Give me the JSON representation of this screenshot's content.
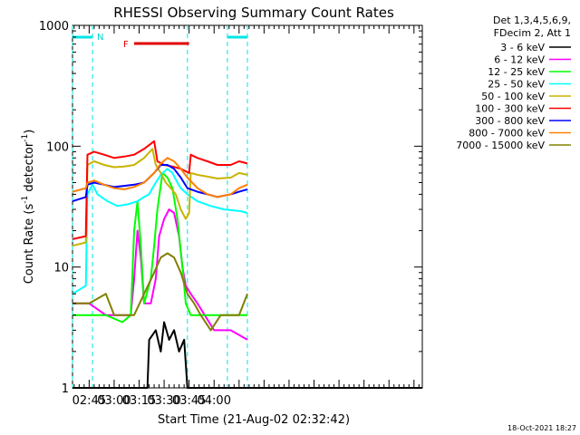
{
  "chart_data": {
    "type": "line",
    "title": "RHESSI Observing Summary Count Rates",
    "xlabel": "Start Time (21-Aug-02 02:32:42)",
    "ylabel_parts": [
      "Count Rate (s",
      "-1",
      " detector",
      "-1",
      ")"
    ],
    "y_scale": "log",
    "ylim": [
      1,
      1000
    ],
    "xlim_minutes": [
      35,
      245
    ],
    "y_ticks": [
      {
        "v": 1,
        "label": "1"
      },
      {
        "v": 10,
        "label": "10"
      },
      {
        "v": 100,
        "label": "100"
      },
      {
        "v": 1000,
        "label": "1000"
      }
    ],
    "x_ticks": [
      {
        "t": 45,
        "label": "02:45"
      },
      {
        "t": 60,
        "label": "03:00"
      },
      {
        "t": 75,
        "label": "03:15"
      },
      {
        "t": 90,
        "label": "03:30"
      },
      {
        "t": 105,
        "label": "03:45"
      },
      {
        "t": 120,
        "label": "04:00"
      }
    ],
    "legend_header": [
      "Det 1,3,4,5,6,9,",
      "FDecim 2, Att 1"
    ],
    "legend_position": "right",
    "series": [
      {
        "name": "3 - 6 keV",
        "color": "#000000",
        "points": [
          [
            35,
            1
          ],
          [
            80,
            1
          ],
          [
            81,
            2.5
          ],
          [
            85,
            3
          ],
          [
            88,
            2
          ],
          [
            90,
            3.5
          ],
          [
            93,
            2.5
          ],
          [
            96,
            3
          ],
          [
            99,
            2
          ],
          [
            102,
            2.5
          ],
          [
            104,
            1
          ],
          [
            245,
            1
          ]
        ]
      },
      {
        "name": "6 - 12 keV",
        "color": "#ff00ff",
        "points": [
          [
            35,
            5
          ],
          [
            45,
            5
          ],
          [
            55,
            4
          ],
          [
            65,
            4
          ],
          [
            70,
            4
          ],
          [
            72,
            8
          ],
          [
            74,
            20
          ],
          [
            76,
            12
          ],
          [
            78,
            5
          ],
          [
            82,
            5
          ],
          [
            85,
            8
          ],
          [
            87,
            18
          ],
          [
            90,
            25
          ],
          [
            93,
            30
          ],
          [
            96,
            28
          ],
          [
            99,
            18
          ],
          [
            101,
            10
          ],
          [
            103,
            7
          ],
          [
            106,
            6
          ],
          [
            110,
            5
          ],
          [
            120,
            3
          ],
          [
            130,
            3
          ],
          [
            140,
            2.5
          ]
        ]
      },
      {
        "name": "12 - 25 keV",
        "color": "#00ff00",
        "points": [
          [
            35,
            4
          ],
          [
            45,
            4
          ],
          [
            55,
            4
          ],
          [
            65,
            3.5
          ],
          [
            70,
            4
          ],
          [
            72,
            20
          ],
          [
            74,
            35
          ],
          [
            76,
            15
          ],
          [
            78,
            5
          ],
          [
            82,
            8
          ],
          [
            84,
            15
          ],
          [
            86,
            30
          ],
          [
            89,
            60
          ],
          [
            92,
            55
          ],
          [
            95,
            45
          ],
          [
            98,
            25
          ],
          [
            101,
            10
          ],
          [
            103,
            5
          ],
          [
            106,
            4
          ],
          [
            115,
            4
          ],
          [
            130,
            4
          ],
          [
            140,
            4
          ]
        ]
      },
      {
        "name": "25 - 50 keV",
        "color": "#00ffff",
        "points": [
          [
            35,
            6
          ],
          [
            43,
            7
          ],
          [
            44,
            40
          ],
          [
            47,
            48
          ],
          [
            50,
            40
          ],
          [
            56,
            35
          ],
          [
            62,
            32
          ],
          [
            68,
            33
          ],
          [
            74,
            35
          ],
          [
            78,
            38
          ],
          [
            81,
            40
          ],
          [
            83,
            45
          ],
          [
            85,
            50
          ],
          [
            88,
            58
          ],
          [
            92,
            65
          ],
          [
            95,
            60
          ],
          [
            98,
            50
          ],
          [
            100,
            45
          ],
          [
            104,
            40
          ],
          [
            110,
            35
          ],
          [
            118,
            32
          ],
          [
            126,
            30
          ],
          [
            136,
            29
          ],
          [
            140,
            28
          ]
        ]
      },
      {
        "name": "50 - 100 keV",
        "color": "#c8b400",
        "points": [
          [
            35,
            15
          ],
          [
            43,
            16
          ],
          [
            44,
            70
          ],
          [
            48,
            75
          ],
          [
            54,
            70
          ],
          [
            60,
            67
          ],
          [
            66,
            68
          ],
          [
            72,
            70
          ],
          [
            78,
            80
          ],
          [
            83,
            95
          ],
          [
            85,
            70
          ],
          [
            88,
            60
          ],
          [
            91,
            50
          ],
          [
            94,
            45
          ],
          [
            97,
            40
          ],
          [
            100,
            30
          ],
          [
            103,
            25
          ],
          [
            105,
            28
          ],
          [
            106,
            60
          ],
          [
            110,
            58
          ],
          [
            116,
            56
          ],
          [
            122,
            54
          ],
          [
            130,
            55
          ],
          [
            135,
            60
          ],
          [
            140,
            58
          ]
        ]
      },
      {
        "name": "100 - 300 keV",
        "color": "#ff0000",
        "points": [
          [
            35,
            17
          ],
          [
            43,
            18
          ],
          [
            44,
            85
          ],
          [
            48,
            90
          ],
          [
            54,
            85
          ],
          [
            60,
            80
          ],
          [
            66,
            82
          ],
          [
            72,
            85
          ],
          [
            78,
            95
          ],
          [
            84,
            110
          ],
          [
            86,
            75
          ],
          [
            90,
            70
          ],
          [
            95,
            68
          ],
          [
            100,
            65
          ],
          [
            105,
            60
          ],
          [
            106,
            85
          ],
          [
            110,
            80
          ],
          [
            116,
            75
          ],
          [
            122,
            70
          ],
          [
            130,
            70
          ],
          [
            135,
            75
          ],
          [
            140,
            72
          ]
        ]
      },
      {
        "name": "300 - 800 keV",
        "color": "#0000ff",
        "points": [
          [
            35,
            35
          ],
          [
            43,
            38
          ],
          [
            44,
            48
          ],
          [
            48,
            50
          ],
          [
            54,
            48
          ],
          [
            60,
            46
          ],
          [
            66,
            47
          ],
          [
            72,
            48
          ],
          [
            78,
            50
          ],
          [
            84,
            60
          ],
          [
            88,
            70
          ],
          [
            92,
            70
          ],
          [
            96,
            65
          ],
          [
            100,
            55
          ],
          [
            104,
            45
          ],
          [
            110,
            42
          ],
          [
            116,
            40
          ],
          [
            122,
            38
          ],
          [
            130,
            40
          ],
          [
            135,
            42
          ],
          [
            140,
            44
          ]
        ]
      },
      {
        "name": "800 - 7000 keV",
        "color": "#ff8000",
        "points": [
          [
            35,
            42
          ],
          [
            43,
            45
          ],
          [
            44,
            50
          ],
          [
            48,
            52
          ],
          [
            54,
            48
          ],
          [
            60,
            45
          ],
          [
            66,
            44
          ],
          [
            72,
            46
          ],
          [
            78,
            50
          ],
          [
            84,
            60
          ],
          [
            88,
            72
          ],
          [
            92,
            80
          ],
          [
            96,
            75
          ],
          [
            100,
            65
          ],
          [
            104,
            55
          ],
          [
            110,
            45
          ],
          [
            116,
            40
          ],
          [
            122,
            38
          ],
          [
            130,
            40
          ],
          [
            135,
            45
          ],
          [
            140,
            48
          ]
        ]
      },
      {
        "name": "7000 - 15000 keV",
        "color": "#808000",
        "points": [
          [
            35,
            5
          ],
          [
            45,
            5
          ],
          [
            55,
            6
          ],
          [
            60,
            4
          ],
          [
            66,
            4
          ],
          [
            72,
            4
          ],
          [
            78,
            6
          ],
          [
            84,
            9
          ],
          [
            88,
            12
          ],
          [
            92,
            13
          ],
          [
            96,
            12
          ],
          [
            100,
            9
          ],
          [
            104,
            6
          ],
          [
            108,
            5
          ],
          [
            112,
            4
          ],
          [
            118,
            3
          ],
          [
            124,
            4
          ],
          [
            130,
            4
          ],
          [
            135,
            4
          ],
          [
            140,
            6
          ]
        ]
      }
    ],
    "markers": {
      "night_label": "N",
      "flare_label": "F",
      "night_bars": [
        [
          35,
          47
        ],
        [
          128,
          140
        ]
      ],
      "night_lines": [
        35,
        47,
        104,
        128,
        140
      ],
      "flare_bar": [
        72,
        105
      ]
    },
    "footer_date": "18-Oct-2021 18:27",
    "grid": false
  }
}
